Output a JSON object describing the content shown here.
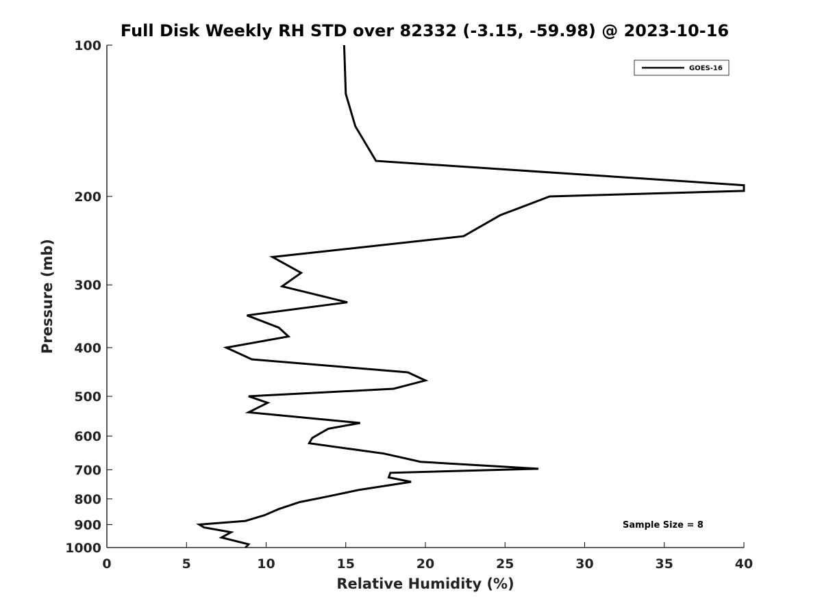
{
  "chart_data": {
    "type": "line",
    "title": "Full Disk Weekly RH STD over 82332 (-3.15, -59.98) @ 2023-10-16",
    "xlabel": "Relative Humidity (%)",
    "ylabel": "Pressure (mb)",
    "xlim": [
      0,
      40
    ],
    "ylim": [
      100,
      1000
    ],
    "yscale": "log",
    "yreversed": true,
    "xticks": [
      0,
      5,
      10,
      15,
      20,
      25,
      30,
      35,
      40
    ],
    "yticks": [
      100,
      200,
      300,
      400,
      500,
      600,
      700,
      800,
      900,
      1000
    ],
    "grid": false,
    "legend": {
      "location": "top-right",
      "entries": [
        "GOES-16"
      ]
    },
    "annotation": "Sample Size = 8",
    "series": [
      {
        "name": "GOES-16",
        "color": "#000000",
        "x": [
          14.9,
          15.0,
          15.6,
          16.9,
          40.0,
          40.0,
          27.8,
          24.7,
          22.4,
          10.4,
          12.2,
          11.0,
          15.1,
          8.8,
          10.8,
          11.4,
          7.5,
          9.1,
          18.9,
          20.0,
          18.0,
          8.9,
          10.1,
          8.9,
          15.9,
          13.9,
          12.9,
          12.7,
          17.4,
          19.7,
          27.1,
          17.8,
          17.7,
          19.1,
          15.8,
          13.8,
          12.1,
          10.8,
          9.9,
          8.7,
          5.8,
          6.1,
          7.8,
          7.2,
          8.9,
          8.7
        ],
        "y": [
          100,
          125,
          145,
          170,
          190,
          195,
          200,
          218,
          240,
          264,
          284,
          302,
          325,
          345,
          365,
          380,
          400,
          422,
          448,
          465,
          483,
          500,
          515,
          538,
          565,
          580,
          605,
          620,
          650,
          675,
          697,
          710,
          725,
          740,
          768,
          792,
          812,
          838,
          862,
          885,
          900,
          912,
          932,
          955,
          985,
          1000
        ]
      }
    ]
  }
}
